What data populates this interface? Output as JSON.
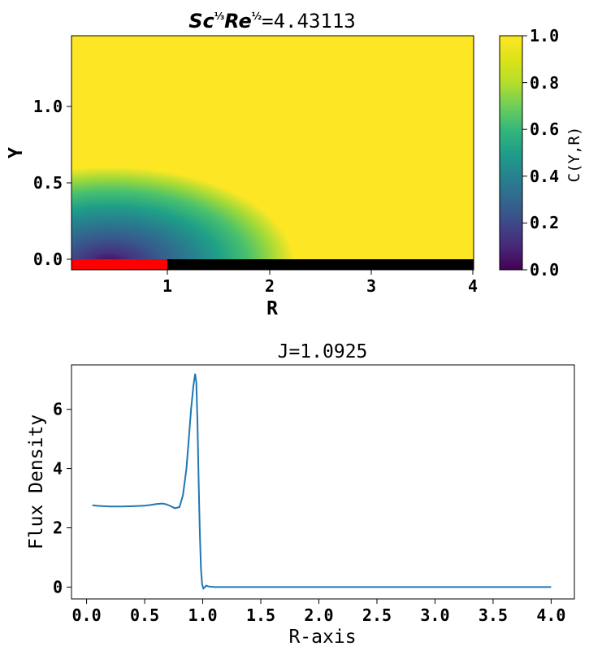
{
  "chart_data": [
    {
      "type": "heatmap",
      "title": {
        "sc": "Sc",
        "re": "Re",
        "sc_exp": "1/3",
        "re_exp": "1/2",
        "value_text": "=4.43113"
      },
      "xlabel": "R",
      "ylabel": "Y",
      "xlim": [
        0.0,
        4.0
      ],
      "ylim": [
        -0.05,
        1.45
      ],
      "x_ticks": [
        "1",
        "2",
        "3",
        "4"
      ],
      "y_ticks": [
        "0.0",
        "0.5",
        "1.0"
      ],
      "colorbar": {
        "label": "C(Y,R)",
        "range": [
          0.0,
          1.0
        ],
        "ticks": [
          "0.0",
          "0.2",
          "0.4",
          "0.6",
          "0.8",
          "1.0"
        ],
        "colormap": "viridis"
      },
      "boundary": {
        "electrode_range": [
          0.0,
          1.0
        ],
        "electrode_color": "#ff0000",
        "insulator_range": [
          1.0,
          4.0
        ],
        "insulator_color": "#000000"
      }
    },
    {
      "type": "line",
      "title": "J=1.0925",
      "xlabel": "R-axis",
      "ylabel": "Flux Density",
      "xlim": [
        -0.13,
        4.2
      ],
      "ylim": [
        -0.4,
        7.5
      ],
      "x_ticks": [
        "0.0",
        "0.5",
        "1.0",
        "1.5",
        "2.0",
        "2.5",
        "3.0",
        "3.5",
        "4.0"
      ],
      "y_ticks": [
        "0",
        "2",
        "4",
        "6"
      ],
      "line_color": "#1f77b4",
      "x": [
        0.05,
        0.1,
        0.2,
        0.3,
        0.4,
        0.5,
        0.55,
        0.6,
        0.65,
        0.68,
        0.72,
        0.76,
        0.8,
        0.83,
        0.86,
        0.88,
        0.9,
        0.92,
        0.935,
        0.945,
        0.955,
        0.965,
        0.975,
        0.985,
        0.995,
        1.005,
        1.015,
        1.03,
        1.05,
        1.1,
        1.5,
        2.0,
        2.5,
        3.0,
        3.5,
        4.0
      ],
      "values": [
        2.76,
        2.74,
        2.72,
        2.72,
        2.73,
        2.75,
        2.77,
        2.8,
        2.82,
        2.8,
        2.74,
        2.66,
        2.7,
        3.1,
        4.0,
        5.0,
        6.0,
        6.8,
        7.2,
        6.9,
        5.5,
        3.6,
        1.8,
        0.6,
        0.1,
        -0.05,
        -0.02,
        0.05,
        0.02,
        0.0,
        0.0,
        0.0,
        0.0,
        0.0,
        0.0,
        0.0
      ]
    }
  ]
}
